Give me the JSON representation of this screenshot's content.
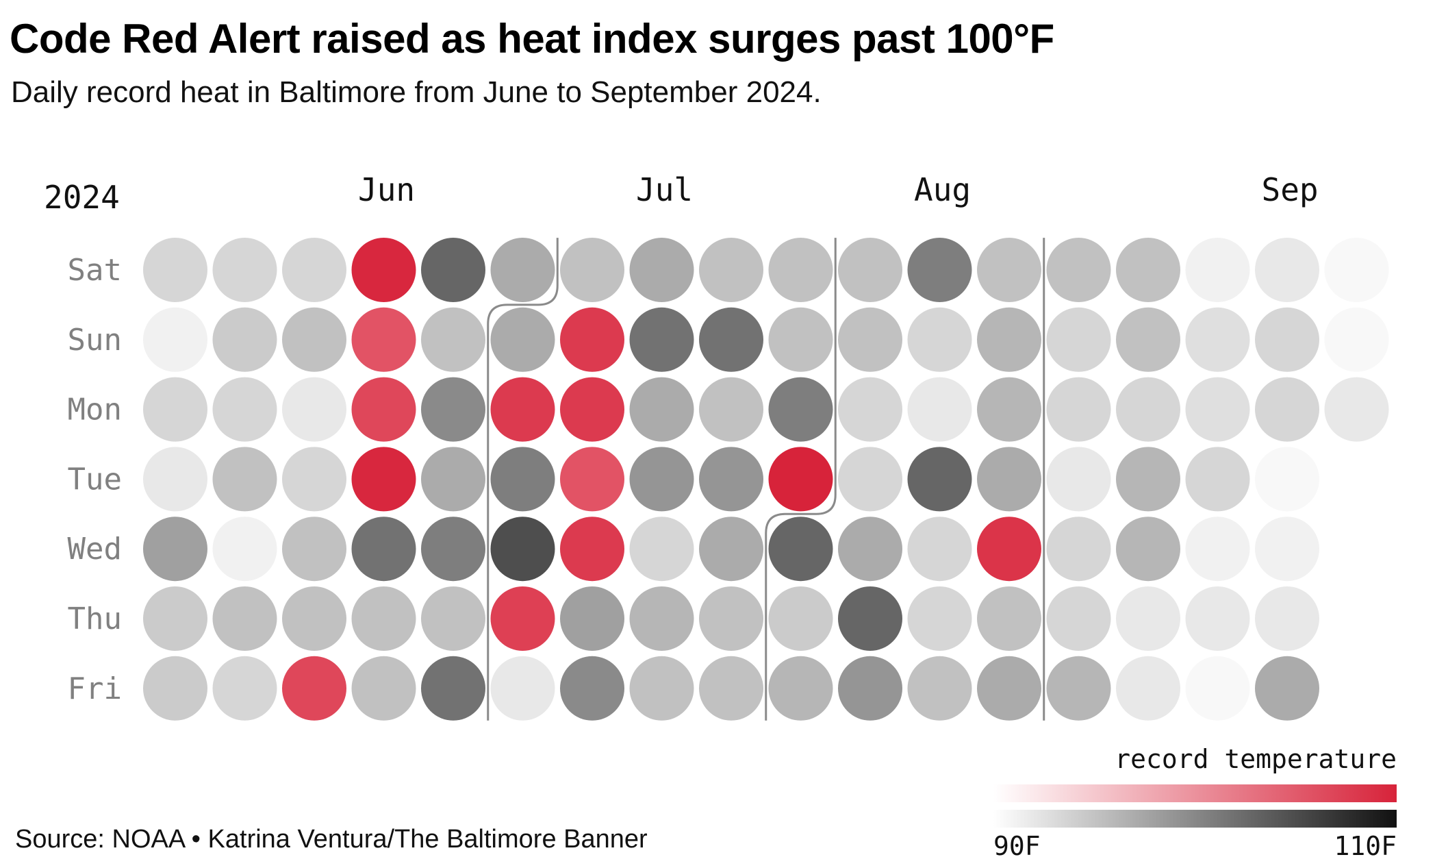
{
  "title": "Code Red Alert raised as heat index surges past 100°F",
  "subtitle": "Daily record heat in Baltimore from June to September 2024.",
  "source": "Source: NOAA • Katrina Ventura/The Baltimore Banner",
  "chart_data": {
    "type": "heatmap",
    "layout": "calendar",
    "year_label": "2024",
    "month_labels": [
      {
        "label": "Jun",
        "week": 4
      },
      {
        "label": "Jul",
        "week": 8
      },
      {
        "label": "Aug",
        "week": 12
      },
      {
        "label": "Sep",
        "week": 17
      }
    ],
    "weekdays": [
      "Sat",
      "Sun",
      "Mon",
      "Tue",
      "Wed",
      "Thu",
      "Fri"
    ],
    "month_boundaries": [
      {
        "col": 5,
        "start_row": 1
      },
      {
        "col": 9,
        "start_row": 4
      },
      {
        "col": 13,
        "start_row": 0
      }
    ],
    "color_scale": {
      "label": "record temperature",
      "min": 90,
      "max": 110,
      "min_label": "90F",
      "max_label": "110F",
      "gray_ramp": [
        "#f8f8f8",
        "#111111"
      ],
      "red_ramp": [
        "#fff5f6",
        "#d7233a"
      ]
    },
    "weeks": [
      {
        "values": [
          94,
          91,
          94,
          92,
          99,
          95,
          95
        ],
        "record": [
          false,
          false,
          false,
          false,
          false,
          false,
          false
        ]
      },
      {
        "values": [
          94,
          95,
          94,
          96,
          91,
          96,
          94
        ],
        "record": [
          false,
          false,
          false,
          false,
          false,
          false,
          false
        ]
      },
      {
        "values": [
          94,
          96,
          92,
          94,
          96,
          96,
          102
        ],
        "record": [
          false,
          false,
          false,
          false,
          false,
          false,
          true
        ]
      },
      {
        "values": [
          107,
          100,
          102,
          107,
          103,
          96,
          96
        ],
        "record": [
          true,
          true,
          true,
          true,
          false,
          false,
          false
        ]
      },
      {
        "values": [
          104,
          96,
          101,
          98,
          102,
          96,
          103
        ],
        "record": [
          false,
          false,
          false,
          false,
          false,
          false,
          false
        ]
      },
      {
        "values": [
          98,
          98,
          104,
          102,
          106,
          103,
          92
        ],
        "record": [
          false,
          false,
          true,
          false,
          false,
          true,
          false
        ]
      },
      {
        "values": [
          96,
          104,
          104,
          100,
          104,
          99,
          101
        ],
        "record": [
          false,
          true,
          true,
          true,
          true,
          false,
          false
        ]
      },
      {
        "values": [
          98,
          103,
          98,
          100,
          94,
          97,
          96
        ],
        "record": [
          false,
          false,
          false,
          false,
          false,
          false,
          false
        ]
      },
      {
        "values": [
          96,
          103,
          96,
          100,
          98,
          96,
          96
        ],
        "record": [
          false,
          false,
          false,
          false,
          false,
          false,
          false
        ]
      },
      {
        "values": [
          96,
          96,
          102,
          109,
          104,
          95,
          97
        ],
        "record": [
          false,
          false,
          false,
          true,
          false,
          false,
          false
        ]
      },
      {
        "values": [
          96,
          96,
          94,
          94,
          98,
          104,
          100
        ],
        "record": [
          false,
          false,
          false,
          false,
          false,
          false,
          false
        ]
      },
      {
        "values": [
          102,
          94,
          92,
          104,
          94,
          94,
          96
        ],
        "record": [
          false,
          false,
          false,
          false,
          false,
          false,
          false
        ]
      },
      {
        "values": [
          96,
          97,
          97,
          98,
          105,
          96,
          98
        ],
        "record": [
          false,
          false,
          false,
          false,
          true,
          false,
          false
        ]
      },
      {
        "values": [
          96,
          94,
          94,
          92,
          94,
          94,
          97
        ],
        "record": [
          false,
          false,
          false,
          false,
          false,
          false,
          false
        ]
      },
      {
        "values": [
          96,
          96,
          94,
          97,
          97,
          92,
          92
        ],
        "record": [
          false,
          false,
          false,
          false,
          false,
          false,
          false
        ]
      },
      {
        "values": [
          91,
          93,
          93,
          94,
          91,
          92,
          90
        ],
        "record": [
          false,
          false,
          false,
          false,
          false,
          false,
          false
        ]
      },
      {
        "values": [
          92,
          94,
          94,
          90,
          91,
          92,
          98
        ],
        "record": [
          false,
          false,
          false,
          false,
          false,
          false,
          false
        ]
      },
      {
        "values": [
          90,
          90,
          92,
          null,
          null,
          null,
          null
        ],
        "record": [
          false,
          false,
          false,
          false,
          false,
          false,
          false
        ]
      }
    ]
  }
}
